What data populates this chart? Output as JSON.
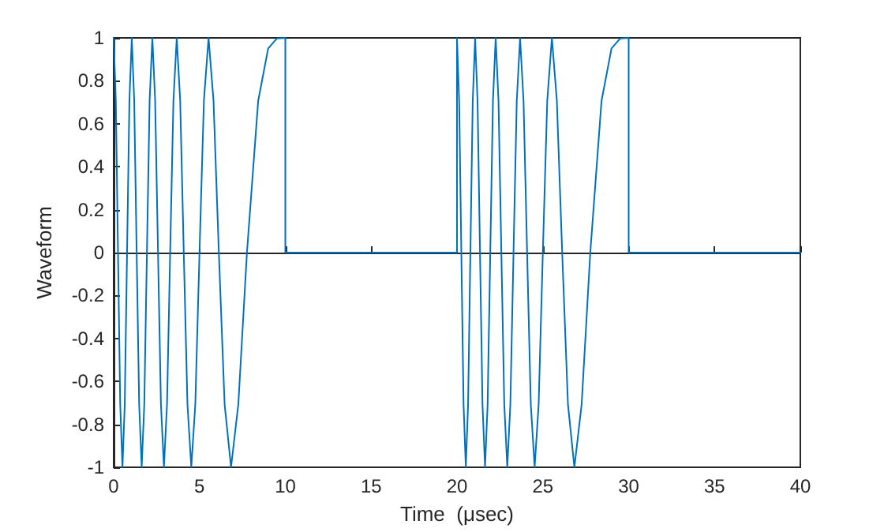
{
  "chart_data": {
    "type": "line",
    "xlabel": "Time  (μsec)",
    "ylabel": "Waveform",
    "x": [
      0,
      0.126,
      0.253,
      0.382,
      0.513,
      0.646,
      0.78,
      0.917,
      1.056,
      1.197,
      1.34,
      1.485,
      1.633,
      1.784,
      1.938,
      2.094,
      2.254,
      2.417,
      2.584,
      2.754,
      2.929,
      3.108,
      3.292,
      3.481,
      3.675,
      3.876,
      4.084,
      4.299,
      4.523,
      4.756,
      5.0,
      5.257,
      5.528,
      5.817,
      6.127,
      6.464,
      6.838,
      7.261,
      7.764,
      8.419,
      9.0,
      9.5,
      10,
      10,
      20,
      20,
      20.126,
      20.253,
      20.382,
      20.513,
      20.646,
      20.78,
      20.917,
      21.056,
      21.197,
      21.34,
      21.485,
      21.633,
      21.784,
      21.938,
      22.094,
      22.254,
      22.417,
      22.584,
      22.754,
      22.929,
      23.108,
      23.292,
      23.481,
      23.675,
      23.876,
      24.084,
      24.299,
      24.523,
      24.756,
      25.0,
      25.257,
      25.528,
      25.817,
      26.127,
      26.464,
      26.838,
      27.261,
      27.764,
      28.419,
      29.0,
      29.5,
      30,
      30,
      40
    ],
    "series": [
      {
        "color": "#0072bd",
        "values": [
          1,
          0.707,
          0,
          -0.707,
          -1,
          -0.707,
          0,
          0.707,
          1,
          0.707,
          0,
          -0.707,
          -1,
          -0.707,
          0,
          0.707,
          1,
          0.707,
          0,
          -0.707,
          -1,
          -0.707,
          0,
          0.707,
          1,
          0.707,
          0,
          -0.707,
          -1,
          -0.707,
          0,
          0.707,
          1,
          0.707,
          0,
          -0.707,
          -1,
          -0.707,
          0,
          0.707,
          0.951,
          0.997,
          1,
          0,
          0,
          1,
          0.707,
          0,
          -0.707,
          -1,
          -0.707,
          0,
          0.707,
          1,
          0.707,
          0,
          -0.707,
          -1,
          -0.707,
          0,
          0.707,
          1,
          0.707,
          0,
          -0.707,
          -1,
          -0.707,
          0,
          0.707,
          1,
          0.707,
          0,
          -0.707,
          -1,
          -0.707,
          0,
          0.707,
          1,
          0.707,
          0,
          -0.707,
          -1,
          -0.707,
          0,
          0.707,
          0.951,
          0.997,
          1,
          0,
          0
        ]
      }
    ],
    "xlim": [
      0,
      40
    ],
    "xticks": [
      0,
      5,
      10,
      15,
      20,
      25,
      30,
      35,
      40
    ],
    "ylim": [
      -1,
      1
    ],
    "yticks": [
      -1,
      -0.8,
      -0.6,
      -0.4,
      -0.2,
      0,
      0.2,
      0.4,
      0.6,
      0.8,
      1
    ],
    "marker": "none",
    "line_style": "solid"
  }
}
